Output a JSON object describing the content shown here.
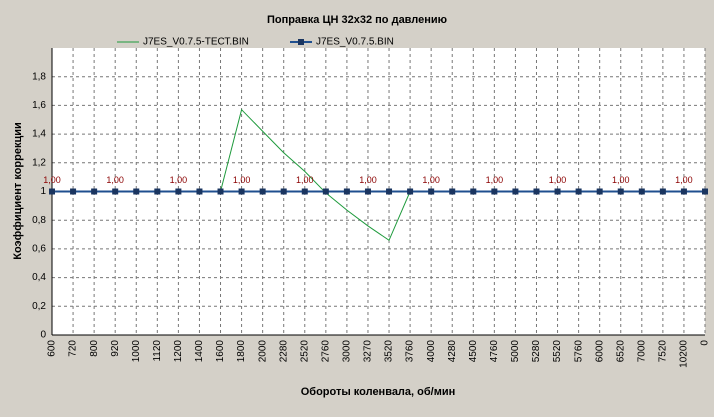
{
  "chart_data": {
    "type": "line",
    "title": "Поправка ЦН 32x32 по давлению",
    "x_label": "Обороты коленвала, об/мин",
    "y_label": "Коэффициент коррекции",
    "categories": [
      "600",
      "720",
      "800",
      "920",
      "1000",
      "1120",
      "1200",
      "1400",
      "1600",
      "1800",
      "2000",
      "2280",
      "2520",
      "2760",
      "3000",
      "3270",
      "3520",
      "3760",
      "4000",
      "4280",
      "4500",
      "4760",
      "5000",
      "5280",
      "5520",
      "5760",
      "6000",
      "6520",
      "7000",
      "7520",
      "10200",
      "0"
    ],
    "series": [
      {
        "name": "J7ES_V0.7.5-ТЕСТ.BIN",
        "color": "#1e9a3c",
        "marker": false,
        "values": [
          1,
          1,
          1,
          1,
          1,
          1,
          1,
          1,
          1,
          1.57,
          1.42,
          1.27,
          1.14,
          0.99,
          0.87,
          0.76,
          0.66,
          1,
          1,
          1,
          1,
          1,
          1,
          1,
          1,
          1,
          1,
          1,
          1,
          1,
          1,
          1
        ]
      },
      {
        "name": "J7ES_V0.7.5.BIN",
        "color": "#1f4f8f",
        "marker": true,
        "values": [
          1,
          1,
          1,
          1,
          1,
          1,
          1,
          1,
          1,
          1,
          1,
          1,
          1,
          1,
          1,
          1,
          1,
          1,
          1,
          1,
          1,
          1,
          1,
          1,
          1,
          1,
          1,
          1,
          1,
          1,
          1,
          1
        ],
        "value_labels": [
          "1,00",
          null,
          null,
          "1,00",
          null,
          null,
          "1,00",
          null,
          null,
          "1,00",
          null,
          null,
          "1,00",
          null,
          null,
          "1,00",
          null,
          null,
          "1,00",
          null,
          null,
          "1,00",
          null,
          null,
          "1,00",
          null,
          null,
          "1,00",
          null,
          null,
          "1,00",
          null
        ]
      }
    ],
    "ylim": [
      0,
      2
    ],
    "yticks": [
      0,
      {
        "value": 0.2,
        "label": "0,2"
      },
      {
        "value": 0.4,
        "label": "0,4"
      },
      {
        "value": 0.6,
        "label": "0,6"
      },
      {
        "value": 0.8,
        "label": "0,8"
      },
      1,
      {
        "value": 1.2,
        "label": "1,2"
      },
      {
        "value": 1.4,
        "label": "1,4"
      },
      {
        "value": 1.6,
        "label": "1,6"
      },
      {
        "value": 1.8,
        "label": "1,8"
      }
    ],
    "grid": true
  }
}
